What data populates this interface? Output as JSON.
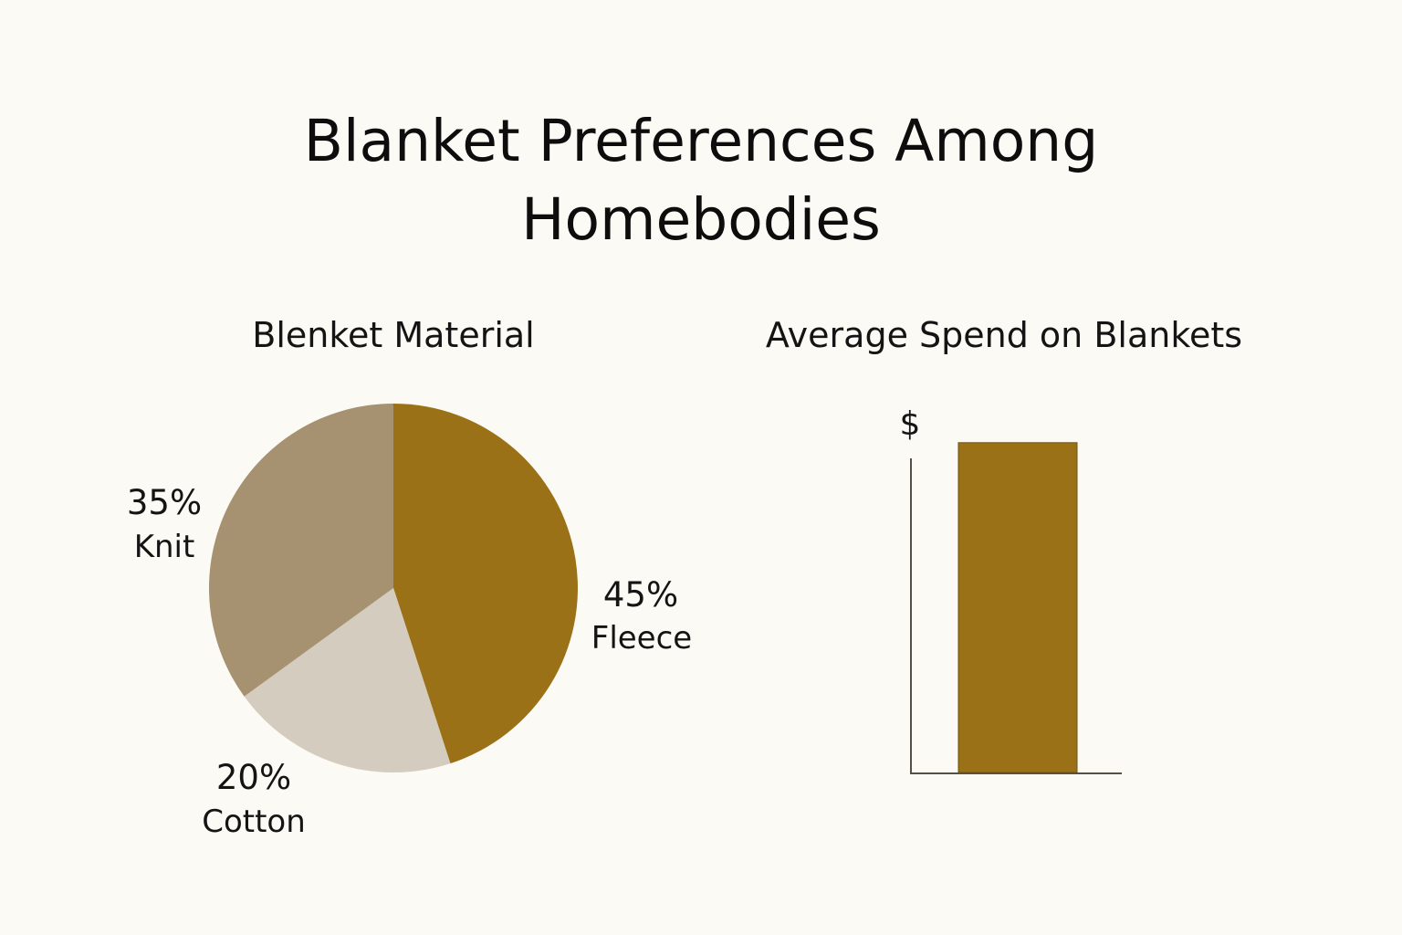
{
  "title": {
    "line1": "Blanket Preferences Among",
    "line2": "Homebodies"
  },
  "chart_data": [
    {
      "type": "pie",
      "title": "Blenket Material",
      "slices": [
        {
          "label": "Fleece",
          "value": 45,
          "value_label": "45%",
          "color": "#9b7118"
        },
        {
          "label": "Cotton",
          "value": 20,
          "value_label": "20%",
          "color": "#d4cdbf"
        },
        {
          "label": "Knit",
          "value": 35,
          "value_label": "35%",
          "color": "#a69270"
        }
      ]
    },
    {
      "type": "bar",
      "title": "Average Spend on Blankets",
      "ylabel": "$",
      "categories": [
        ""
      ],
      "values": [
        105
      ],
      "ylim": [
        0,
        100
      ],
      "bar_color": "#9b7118",
      "axis_color": "#555045",
      "grid": false
    }
  ]
}
